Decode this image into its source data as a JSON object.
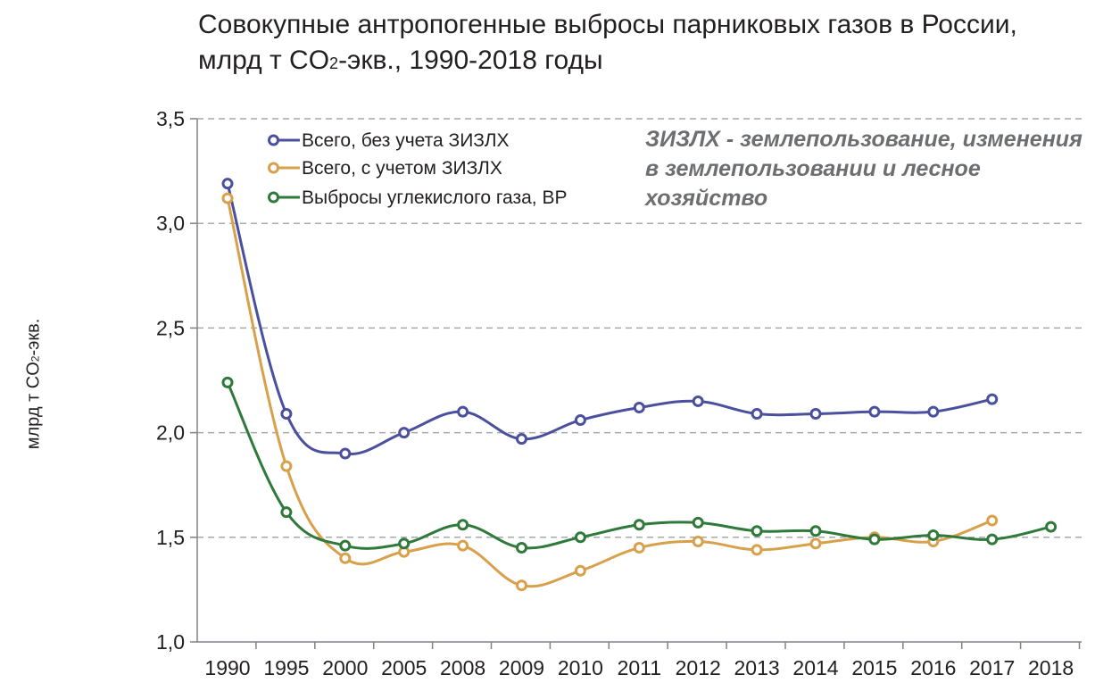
{
  "chart_data": {
    "type": "line",
    "title_line1": "Совокупные антропогенные выбросы парниковых газов в России,",
    "title_line2_pre": "млрд т CO",
    "title_line2_sub": "2",
    "title_line2_post": "-экв., 1990-2018 годы",
    "ylabel_pre": "млрд т CO",
    "ylabel_sub": "2",
    "ylabel_post": "-экв.",
    "annotation": "ЗИЗЛХ - землепользование, изменения в землепользовании и лесное хозяйство",
    "categories": [
      "1990",
      "1995",
      "2000",
      "2005",
      "2008",
      "2009",
      "2010",
      "2011",
      "2012",
      "2013",
      "2014",
      "2015",
      "2016",
      "2017",
      "2018"
    ],
    "ylim": [
      1.0,
      3.5
    ],
    "yticks": [
      "1,0",
      "1,5",
      "2,0",
      "2,5",
      "3,0",
      "3,5"
    ],
    "grid": "horizontal-dashed",
    "legend_position": "top-left",
    "series": [
      {
        "name": "Всего, без учета ЗИЗЛХ",
        "color": "#4a4f9e",
        "values": [
          3.19,
          2.09,
          1.9,
          2.0,
          2.1,
          1.97,
          2.06,
          2.12,
          2.15,
          2.09,
          2.09,
          2.1,
          2.1,
          2.16,
          null
        ]
      },
      {
        "name": "Всего, с учетом ЗИЗЛХ",
        "color": "#d9a04c",
        "values": [
          3.12,
          1.84,
          1.4,
          1.43,
          1.46,
          1.27,
          1.34,
          1.45,
          1.48,
          1.44,
          1.47,
          1.5,
          1.48,
          1.58,
          null
        ]
      },
      {
        "name": "Выбросы углекислого газа, BP",
        "color": "#2f7a3a",
        "values": [
          2.24,
          1.62,
          1.46,
          1.47,
          1.56,
          1.45,
          1.5,
          1.56,
          1.57,
          1.53,
          1.53,
          1.49,
          1.51,
          1.49,
          1.55
        ]
      }
    ]
  }
}
